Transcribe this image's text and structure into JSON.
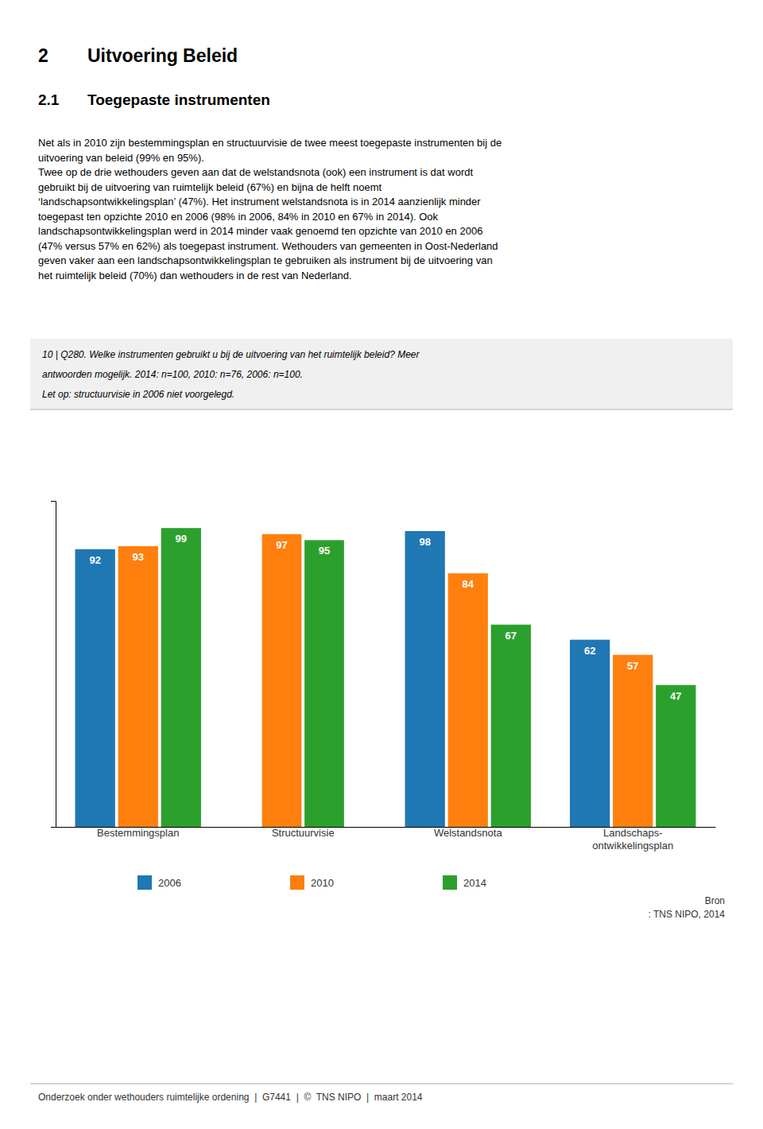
{
  "heading": {
    "number": "2",
    "text": "Uitvoering Beleid"
  },
  "section": {
    "number": "2.1",
    "text": "Toegepaste instrumenten"
  },
  "body_lines": [
    "Net als in 2010 zijn bestemmingsplan en structuurvisie de twee meest toegepaste instrumenten bij de",
    "uitvoering van beleid (99% en 95%).",
    "Twee op de drie wethouders geven aan dat de welstandsnota (ook) een instrument is dat wordt",
    "gebruikt bij de uitvoering van ruimtelijk beleid (67%) en bijna de helft noemt",
    "‘landschapsontwikkelingsplan’ (47%). Het instrument welstandsnota is in 2014 aanzienlijk minder",
    "toegepast ten opzichte 2010 en 2006 (98% in 2006, 84% in 2010 en 67% in 2014). Ook",
    "landschapsontwikkelingsplan werd in 2014 minder vaak genoemd ten opzichte van 2010 en 2006",
    "(47% versus 57% en 62%) als toegepast instrument. Wethouders van gemeenten in Oost-Nederland",
    "geven vaker aan een landschapsontwikkelingsplan te gebruiken als instrument bij de uitvoering van",
    "het ruimtelijk beleid (70%) dan wethouders in de rest van Nederland."
  ],
  "footnote_lines": [
    "10 | Q280. Welke instrumenten gebruikt u bij de uitvoering van het ruimtelijk beleid? Meer",
    "antwoorden mogelijk. 2014: n=100, 2010: n=76, 2006: n=100.",
    "Let op: structuurvisie in 2006 niet voorgelegd."
  ],
  "source_lines": [
    "Bron",
    ": TNS NIPO, 2014"
  ],
  "footer": "Onderzoek onder wethouders ruimtelijke ordening  |  G7441  |  ©  TNS NIPO  |  maart 2014",
  "chart_data": {
    "type": "bar",
    "categories": [
      "Bestemmingsplan",
      "Structuurvisie",
      "Welstandsnota",
      "Landschaps-\nontwikkelingsplan"
    ],
    "series": [
      {
        "name": "2006",
        "values": [
          92,
          null,
          98,
          62
        ]
      },
      {
        "name": "2010",
        "values": [
          93,
          97,
          84,
          57
        ]
      },
      {
        "name": "2014",
        "values": [
          99,
          95,
          67,
          47
        ]
      }
    ],
    "ylim": [
      0,
      108
    ],
    "data_labels": true,
    "tick_labels": "x",
    "grid": false,
    "legend": "bottom"
  }
}
